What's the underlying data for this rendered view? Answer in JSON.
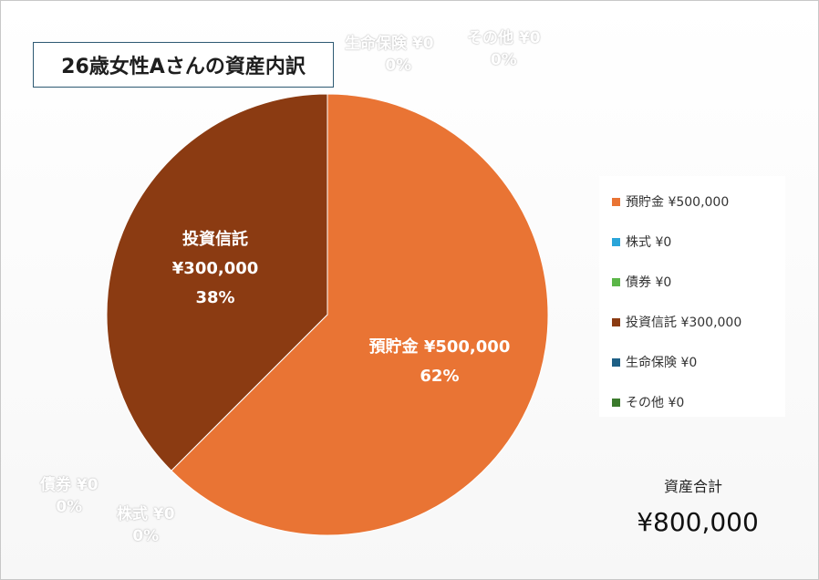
{
  "title": "26歳女性Aさんの資産内訳",
  "total": {
    "label": "資産合計",
    "value": "¥800,000"
  },
  "colors": {
    "預貯金": "#e97434",
    "株式": "#2aa5d9",
    "債券": "#5bb648",
    "投資信託": "#8b3b12",
    "生命保険": "#1d5f85",
    "その他": "#3b7a2c"
  },
  "chart_data": {
    "type": "pie",
    "title": "26歳女性Aさんの資産内訳",
    "legend_position": "right",
    "slices": [
      {
        "name": "預貯金",
        "amount": "¥500,000",
        "value": 500000,
        "percent": "62%"
      },
      {
        "name": "株式",
        "amount": "¥0",
        "value": 0,
        "percent": "0%"
      },
      {
        "name": "債券",
        "amount": "¥0",
        "value": 0,
        "percent": "0%"
      },
      {
        "name": "投資信託",
        "amount": "¥300,000",
        "value": 300000,
        "percent": "38%"
      },
      {
        "name": "生命保険",
        "amount": "¥0",
        "value": 0,
        "percent": "0%"
      },
      {
        "name": "その他",
        "amount": "¥0",
        "value": 0,
        "percent": "0%"
      }
    ]
  },
  "legend": [
    {
      "text": "預貯金 ¥500,000"
    },
    {
      "text": "株式 ¥0"
    },
    {
      "text": "債券 ¥0"
    },
    {
      "text": "投資信託 ¥300,000"
    },
    {
      "text": "生命保険 ¥0"
    },
    {
      "text": "その他 ¥0"
    }
  ],
  "outside_labels": [
    {
      "name": "生命保険 ¥0",
      "percent": "0%"
    },
    {
      "name": "その他 ¥0",
      "percent": "0%"
    },
    {
      "name": "債券 ¥0",
      "percent": "0%"
    },
    {
      "name": "株式 ¥0",
      "percent": "0%"
    }
  ]
}
